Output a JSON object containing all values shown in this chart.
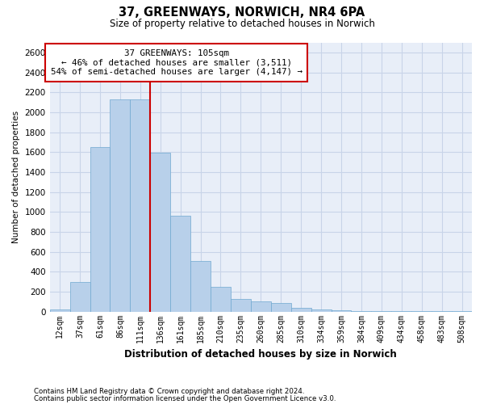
{
  "title": "37, GREENWAYS, NORWICH, NR4 6PA",
  "subtitle": "Size of property relative to detached houses in Norwich",
  "xlabel": "Distribution of detached houses by size in Norwich",
  "ylabel": "Number of detached properties",
  "property_label": "37 GREENWAYS: 105sqm",
  "annotation_line1": "← 46% of detached houses are smaller (3,511)",
  "annotation_line2": "54% of semi-detached houses are larger (4,147) →",
  "bar_color": "#b8d0ea",
  "bar_edge_color": "#6fa8d0",
  "vline_color": "#cc0000",
  "annotation_box_edge": "#cc0000",
  "background_color": "#ffffff",
  "plot_bg_color": "#e8eef8",
  "grid_color": "#c8d4e8",
  "categories": [
    "12sqm",
    "37sqm",
    "61sqm",
    "86sqm",
    "111sqm",
    "136sqm",
    "161sqm",
    "185sqm",
    "210sqm",
    "235sqm",
    "260sqm",
    "285sqm",
    "310sqm",
    "334sqm",
    "359sqm",
    "384sqm",
    "409sqm",
    "434sqm",
    "458sqm",
    "483sqm",
    "508sqm"
  ],
  "values": [
    25,
    295,
    1650,
    2130,
    2130,
    1590,
    960,
    510,
    250,
    130,
    100,
    90,
    40,
    18,
    10,
    8,
    5,
    5,
    2,
    5,
    2
  ],
  "ylim": [
    0,
    2700
  ],
  "yticks": [
    0,
    200,
    400,
    600,
    800,
    1000,
    1200,
    1400,
    1600,
    1800,
    2000,
    2200,
    2400,
    2600
  ],
  "vline_x_index": 4.5,
  "footnote1": "Contains HM Land Registry data © Crown copyright and database right 2024.",
  "footnote2": "Contains public sector information licensed under the Open Government Licence v3.0."
}
